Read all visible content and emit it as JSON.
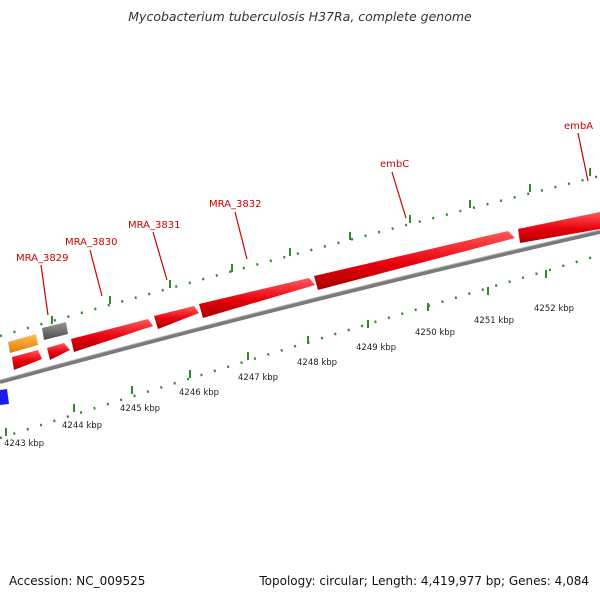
{
  "title": "Mycobacterium tuberculosis H37Ra, complete genome",
  "footer": {
    "accession": "Accession: NC_009525",
    "summary": "Topology: circular; Length: 4,419,977 bp; Genes: 4,084"
  },
  "gene_labels": [
    "MRA_3829",
    "MRA_3830",
    "MRA_3831",
    "MRA_3832",
    "embC",
    "embA"
  ],
  "ticks": [
    "4243 kbp",
    "4244 kbp",
    "4245 kbp",
    "4246 kbp",
    "4247 kbp",
    "4248 kbp",
    "4249 kbp",
    "4250 kbp",
    "4251 kbp",
    "4252 kbp"
  ],
  "colors": {
    "gene": "#e8000d",
    "label": "#cc0000",
    "tick": "#2e8b2e",
    "backbone": "#7a7a7a",
    "orange_feature": "#f39b1f",
    "gray_feature": "#6e6e6e",
    "blue_feature": "#1c1cf0"
  }
}
